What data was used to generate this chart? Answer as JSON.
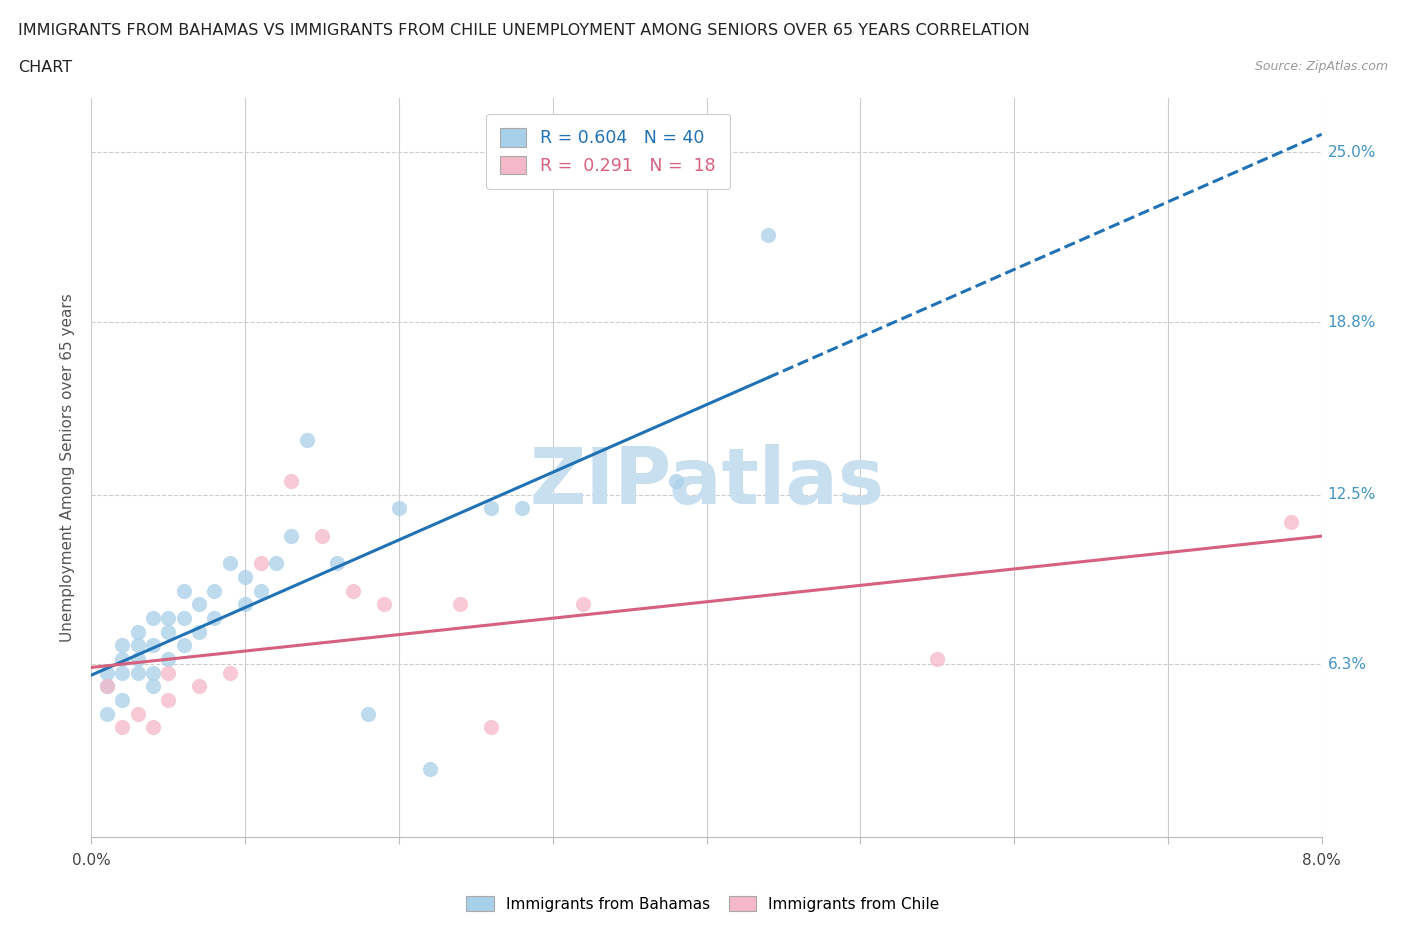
{
  "title_line1": "IMMIGRANTS FROM BAHAMAS VS IMMIGRANTS FROM CHILE UNEMPLOYMENT AMONG SENIORS OVER 65 YEARS CORRELATION",
  "title_line2": "CHART",
  "source": "Source: ZipAtlas.com",
  "ylabel": "Unemployment Among Seniors over 65 years",
  "xlim": [
    0.0,
    0.08
  ],
  "ylim": [
    0.0,
    0.27
  ],
  "ytick_labels_custom": [
    [
      0.063,
      "6.3%"
    ],
    [
      0.125,
      "12.5%"
    ],
    [
      0.188,
      "18.8%"
    ],
    [
      0.25,
      "25.0%"
    ]
  ],
  "bahamas_color": "#a8cfe8",
  "chile_color": "#f4b8c8",
  "watermark": "ZIPatlas",
  "watermark_color": "#c8dff0",
  "legend_R_bahamas": "R = 0.604   N = 40",
  "legend_R_chile": "R =  0.291   N =  18",
  "bahamas_scatter": [
    [
      0.001,
      0.045
    ],
    [
      0.001,
      0.055
    ],
    [
      0.001,
      0.06
    ],
    [
      0.002,
      0.05
    ],
    [
      0.002,
      0.06
    ],
    [
      0.002,
      0.065
    ],
    [
      0.002,
      0.07
    ],
    [
      0.003,
      0.06
    ],
    [
      0.003,
      0.065
    ],
    [
      0.003,
      0.07
    ],
    [
      0.003,
      0.075
    ],
    [
      0.004,
      0.055
    ],
    [
      0.004,
      0.06
    ],
    [
      0.004,
      0.07
    ],
    [
      0.004,
      0.08
    ],
    [
      0.005,
      0.065
    ],
    [
      0.005,
      0.075
    ],
    [
      0.005,
      0.08
    ],
    [
      0.006,
      0.07
    ],
    [
      0.006,
      0.08
    ],
    [
      0.006,
      0.09
    ],
    [
      0.007,
      0.075
    ],
    [
      0.007,
      0.085
    ],
    [
      0.008,
      0.08
    ],
    [
      0.008,
      0.09
    ],
    [
      0.009,
      0.1
    ],
    [
      0.01,
      0.085
    ],
    [
      0.01,
      0.095
    ],
    [
      0.011,
      0.09
    ],
    [
      0.012,
      0.1
    ],
    [
      0.013,
      0.11
    ],
    [
      0.014,
      0.145
    ],
    [
      0.016,
      0.1
    ],
    [
      0.018,
      0.045
    ],
    [
      0.02,
      0.12
    ],
    [
      0.022,
      0.025
    ],
    [
      0.026,
      0.12
    ],
    [
      0.028,
      0.12
    ],
    [
      0.038,
      0.13
    ],
    [
      0.044,
      0.22
    ]
  ],
  "chile_scatter": [
    [
      0.001,
      0.055
    ],
    [
      0.002,
      0.04
    ],
    [
      0.003,
      0.045
    ],
    [
      0.004,
      0.04
    ],
    [
      0.005,
      0.05
    ],
    [
      0.005,
      0.06
    ],
    [
      0.007,
      0.055
    ],
    [
      0.009,
      0.06
    ],
    [
      0.011,
      0.1
    ],
    [
      0.013,
      0.13
    ],
    [
      0.015,
      0.11
    ],
    [
      0.017,
      0.09
    ],
    [
      0.019,
      0.085
    ],
    [
      0.024,
      0.085
    ],
    [
      0.026,
      0.04
    ],
    [
      0.032,
      0.085
    ],
    [
      0.055,
      0.065
    ],
    [
      0.078,
      0.115
    ]
  ],
  "bahamas_trendline_color": "#2171b5",
  "chile_trendline_color": "#d6617e",
  "background_color": "#ffffff",
  "grid_color": "#cccccc"
}
